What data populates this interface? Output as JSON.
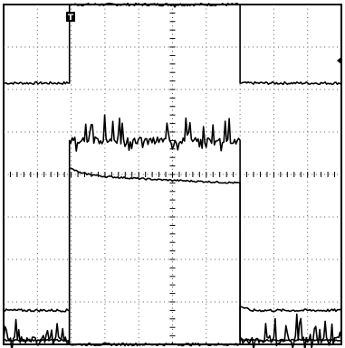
{
  "chart_data": {
    "type": "line",
    "grid": true,
    "x_divisions": 10,
    "y_divisions": 8,
    "xlim": [
      0,
      10
    ],
    "ylim": [
      -4,
      4
    ],
    "trigger_marker": "T",
    "series": [
      {
        "points": [
          [
            0,
            2.15
          ],
          [
            1.95,
            2.15
          ],
          [
            1.95,
            4.0
          ],
          [
            7.0,
            4.0
          ],
          [
            7.0,
            2.15
          ],
          [
            10,
            2.15
          ]
        ],
        "noise": 0.03
      },
      {
        "points": [
          [
            0,
            -3.9
          ],
          [
            1.95,
            -3.9
          ],
          [
            1.95,
            0.8
          ],
          [
            7.0,
            0.8
          ],
          [
            7.0,
            -3.9
          ],
          [
            10,
            -3.9
          ]
        ],
        "noise": 0.08,
        "spikes": true
      },
      {
        "points": [
          [
            0,
            -3.9
          ],
          [
            1.95,
            -3.9
          ],
          [
            1.95,
            0.15
          ],
          [
            2.3,
            0.03
          ],
          [
            3.0,
            -0.05
          ],
          [
            4.5,
            -0.12
          ],
          [
            6.0,
            -0.17
          ],
          [
            7.0,
            -0.2
          ],
          [
            7.0,
            -3.9
          ],
          [
            10,
            -3.9
          ]
        ],
        "noise": 0.02
      },
      {
        "points": [
          [
            0,
            -3.2
          ],
          [
            1.95,
            -3.2
          ],
          [
            1.95,
            -4.0
          ],
          [
            7.0,
            -4.0
          ],
          [
            7.0,
            -3.1
          ],
          [
            7.3,
            -3.2
          ],
          [
            10,
            -3.2
          ]
        ],
        "noise": 0.03
      }
    ]
  }
}
